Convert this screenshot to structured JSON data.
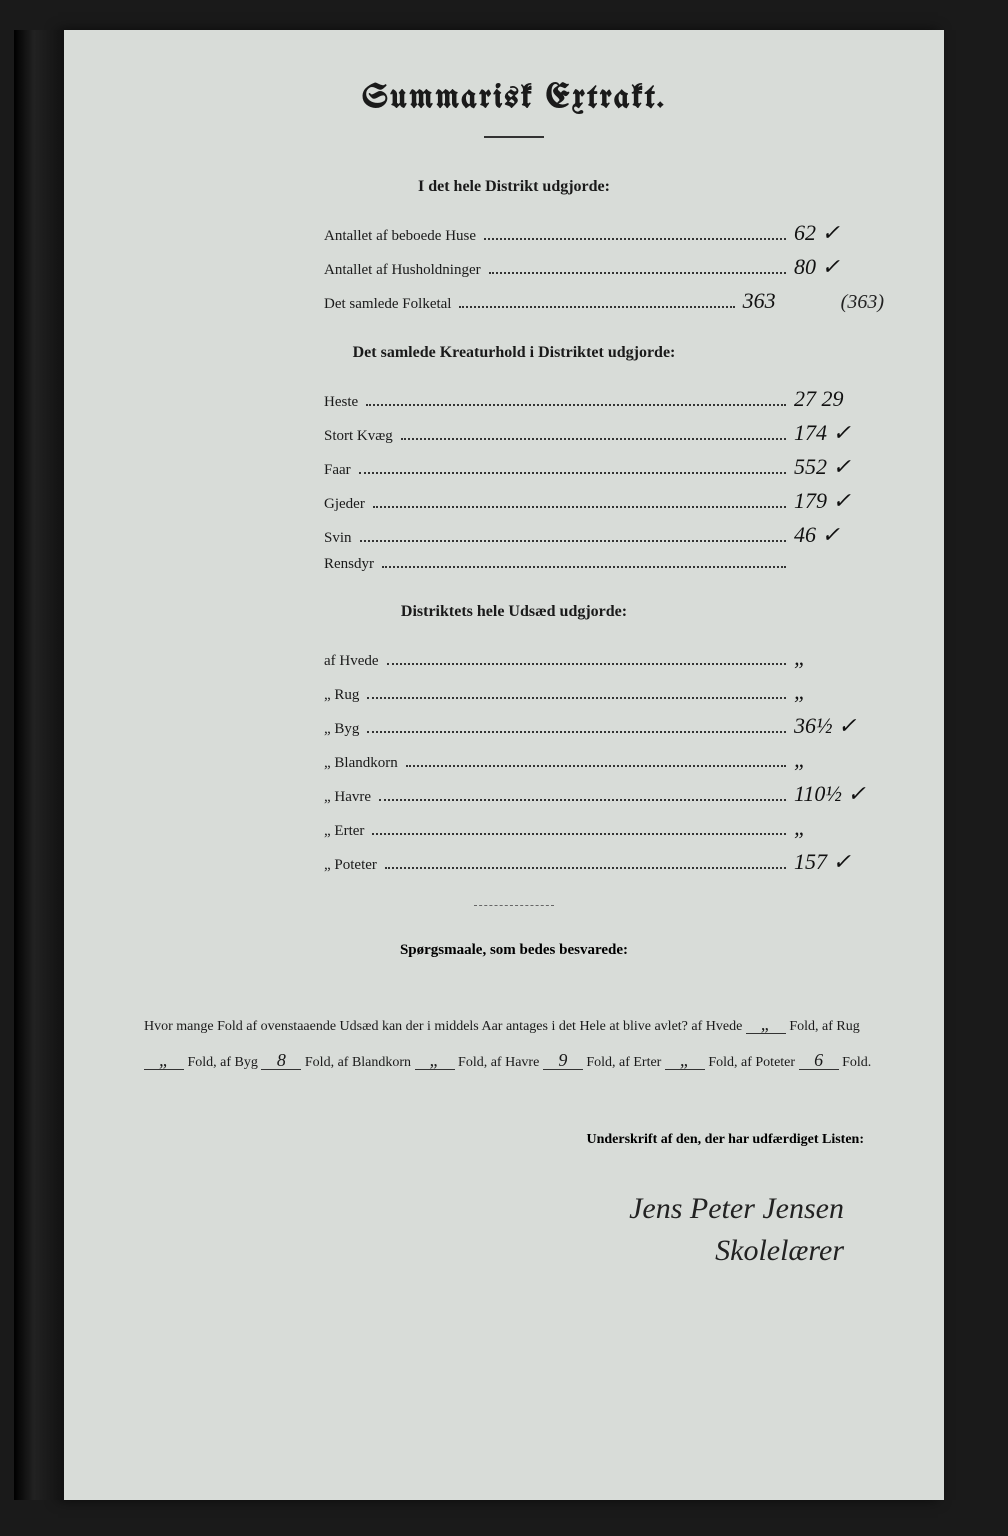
{
  "title": "Summarisk Extrakt.",
  "section1": {
    "heading": "I det hele Distrikt udgjorde:",
    "rows": [
      {
        "label": "Antallet af beboede Huse",
        "value": "62 ✓"
      },
      {
        "label": "Antallet af Husholdninger",
        "value": "80 ✓"
      },
      {
        "label": "Det samlede Folketal",
        "value": "363",
        "note": "(363)"
      }
    ]
  },
  "section2": {
    "heading": "Det samlede Kreaturhold i Distriktet udgjorde:",
    "rows": [
      {
        "label": "Heste",
        "value": "27 29"
      },
      {
        "label": "Stort Kvæg",
        "value": "174 ✓"
      },
      {
        "label": "Faar",
        "value": "552 ✓"
      },
      {
        "label": "Gjeder",
        "value": "179 ✓"
      },
      {
        "label": "Svin",
        "value": "46 ✓"
      },
      {
        "label": "Rensdyr",
        "value": ""
      }
    ]
  },
  "section3": {
    "heading": "Distriktets hele Udsæd udgjorde:",
    "rows": [
      {
        "label": "af Hvede",
        "value": "„"
      },
      {
        "label": "„ Rug",
        "value": "„"
      },
      {
        "label": "„ Byg",
        "value": "36½ ✓"
      },
      {
        "label": "„ Blandkorn",
        "value": "„"
      },
      {
        "label": "„ Havre",
        "value": "110½ ✓"
      },
      {
        "label": "„ Erter",
        "value": "„"
      },
      {
        "label": "„ Poteter",
        "value": "157 ✓"
      }
    ]
  },
  "questions": {
    "heading": "Spørgsmaale, som bedes besvarede:",
    "intro": "Hvor mange Fold af ovenstaaende Udsæd kan der i middels Aar antages i det Hele at blive avlet? af Hvede",
    "hvede": "„",
    "txt1": "Fold, af Rug",
    "rug": "„",
    "txt2": "Fold, af Byg",
    "byg": "8",
    "txt3": "Fold, af Blandkorn",
    "blandkorn": "„",
    "txt4": "Fold, af Havre",
    "havre": "9",
    "txt5": "Fold, af Erter",
    "erter": "„",
    "txt6": "Fold, af Poteter",
    "poteter": "6",
    "txt7": "Fold."
  },
  "signature": {
    "label": "Underskrift af den, der har udfærdiget Listen:",
    "name": "Jens Peter Jensen",
    "title": "Skolelærer"
  },
  "colors": {
    "page_bg": "#d8dcd8",
    "outer_bg": "#1a1a1a",
    "ink": "#1a1a1a",
    "handwriting": "#111"
  }
}
